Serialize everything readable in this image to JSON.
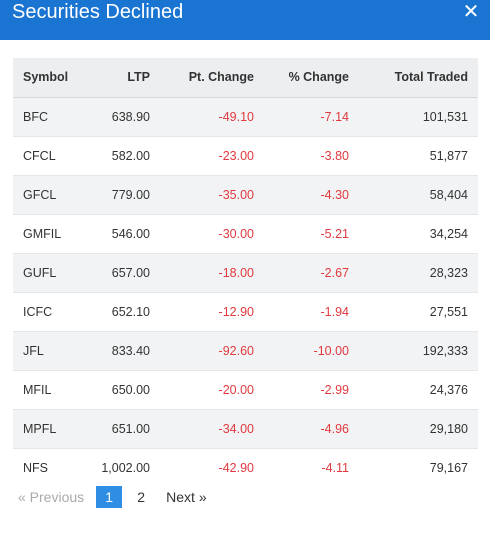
{
  "modal": {
    "title": "Securities Declined",
    "close_icon": "close-icon"
  },
  "table": {
    "headers": [
      "Symbol",
      "LTP",
      "Pt. Change",
      "% Change",
      "Total Traded"
    ],
    "rows": [
      [
        "BFC",
        "638.90",
        "-49.10",
        "-7.14",
        "101,531"
      ],
      [
        "CFCL",
        "582.00",
        "-23.00",
        "-3.80",
        "51,877"
      ],
      [
        "GFCL",
        "779.00",
        "-35.00",
        "-4.30",
        "58,404"
      ],
      [
        "GMFIL",
        "546.00",
        "-30.00",
        "-5.21",
        "34,254"
      ],
      [
        "GUFL",
        "657.00",
        "-18.00",
        "-2.67",
        "28,323"
      ],
      [
        "ICFC",
        "652.10",
        "-12.90",
        "-1.94",
        "27,551"
      ],
      [
        "JFL",
        "833.40",
        "-92.60",
        "-10.00",
        "192,333"
      ],
      [
        "MFIL",
        "650.00",
        "-20.00",
        "-2.99",
        "24,376"
      ],
      [
        "MPFL",
        "651.00",
        "-34.00",
        "-4.96",
        "29,180"
      ],
      [
        "NFS",
        "1,002.00",
        "-42.90",
        "-4.11",
        "79,167"
      ]
    ]
  },
  "pagination": {
    "prev_label": "« Previous",
    "pages": [
      "1",
      "2"
    ],
    "active_page": "1",
    "next_label": "Next »"
  },
  "colors": {
    "header_bg": "#1a75d2",
    "negative": "#e0393e",
    "active_page": "#2f8de4"
  }
}
